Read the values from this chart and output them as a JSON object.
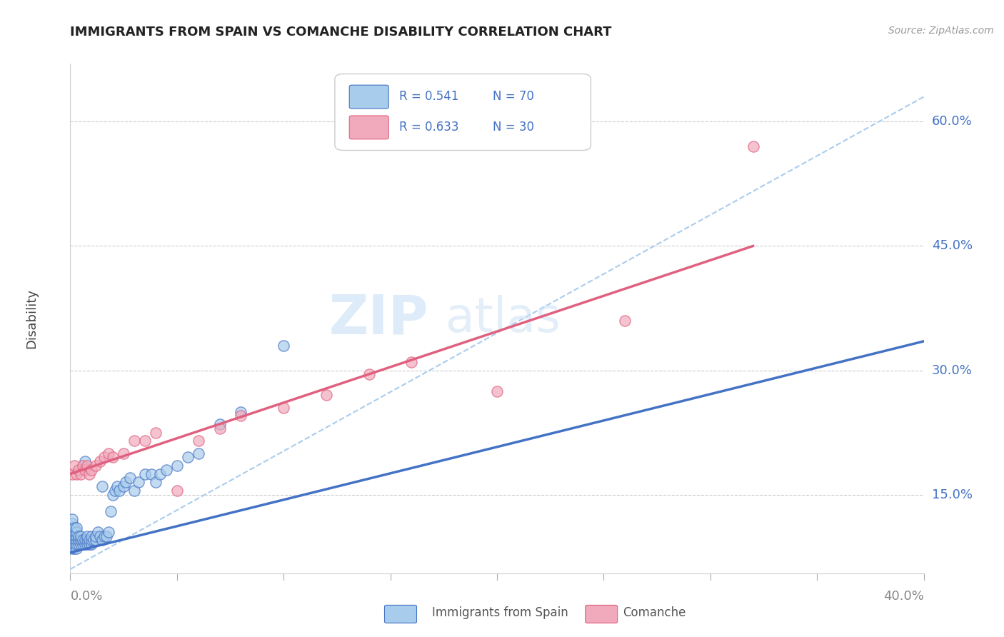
{
  "title": "IMMIGRANTS FROM SPAIN VS COMANCHE DISABILITY CORRELATION CHART",
  "source_text": "Source: ZipAtlas.com",
  "ylabel": "Disability",
  "ytick_labels": [
    "15.0%",
    "30.0%",
    "45.0%",
    "60.0%"
  ],
  "ytick_values": [
    0.15,
    0.3,
    0.45,
    0.6
  ],
  "xtick_labels": [
    "0.0%",
    "40.0%"
  ],
  "xlim": [
    0.0,
    0.4
  ],
  "ylim": [
    0.055,
    0.67
  ],
  "legend_r1": "R = 0.541",
  "legend_n1": "N = 70",
  "legend_r2": "R = 0.633",
  "legend_n2": "N = 30",
  "color_blue_fill": "#A8CCEC",
  "color_pink_fill": "#F0AABB",
  "color_blue_line": "#4472C4",
  "color_pink_line": "#E06080",
  "color_dashed": "#AACCEE",
  "watermark_zip": "ZIP",
  "watermark_atlas": "atlas",
  "blue_scatter_x": [
    0.001,
    0.001,
    0.001,
    0.001,
    0.001,
    0.001,
    0.001,
    0.001,
    0.002,
    0.002,
    0.002,
    0.002,
    0.002,
    0.002,
    0.003,
    0.003,
    0.003,
    0.003,
    0.003,
    0.003,
    0.004,
    0.004,
    0.004,
    0.005,
    0.005,
    0.005,
    0.006,
    0.006,
    0.007,
    0.007,
    0.007,
    0.008,
    0.008,
    0.008,
    0.009,
    0.009,
    0.01,
    0.01,
    0.01,
    0.011,
    0.012,
    0.012,
    0.013,
    0.014,
    0.015,
    0.015,
    0.016,
    0.017,
    0.018,
    0.019,
    0.02,
    0.021,
    0.022,
    0.023,
    0.025,
    0.026,
    0.028,
    0.03,
    0.032,
    0.035,
    0.038,
    0.04,
    0.042,
    0.045,
    0.05,
    0.055,
    0.06,
    0.07,
    0.08,
    0.1
  ],
  "blue_scatter_y": [
    0.085,
    0.09,
    0.095,
    0.1,
    0.105,
    0.11,
    0.115,
    0.12,
    0.085,
    0.09,
    0.095,
    0.1,
    0.105,
    0.11,
    0.085,
    0.09,
    0.095,
    0.1,
    0.105,
    0.11,
    0.09,
    0.095,
    0.1,
    0.09,
    0.095,
    0.1,
    0.09,
    0.095,
    0.09,
    0.095,
    0.19,
    0.09,
    0.095,
    0.1,
    0.09,
    0.095,
    0.09,
    0.095,
    0.1,
    0.095,
    0.095,
    0.1,
    0.105,
    0.1,
    0.095,
    0.16,
    0.1,
    0.1,
    0.105,
    0.13,
    0.15,
    0.155,
    0.16,
    0.155,
    0.16,
    0.165,
    0.17,
    0.155,
    0.165,
    0.175,
    0.175,
    0.165,
    0.175,
    0.18,
    0.185,
    0.195,
    0.2,
    0.235,
    0.25,
    0.33
  ],
  "pink_scatter_x": [
    0.001,
    0.002,
    0.003,
    0.004,
    0.005,
    0.006,
    0.007,
    0.008,
    0.009,
    0.01,
    0.012,
    0.014,
    0.016,
    0.018,
    0.02,
    0.025,
    0.03,
    0.035,
    0.04,
    0.05,
    0.06,
    0.07,
    0.08,
    0.1,
    0.12,
    0.14,
    0.16,
    0.2,
    0.26,
    0.32
  ],
  "pink_scatter_y": [
    0.175,
    0.185,
    0.175,
    0.18,
    0.175,
    0.185,
    0.18,
    0.185,
    0.175,
    0.18,
    0.185,
    0.19,
    0.195,
    0.2,
    0.195,
    0.2,
    0.215,
    0.215,
    0.225,
    0.155,
    0.215,
    0.23,
    0.245,
    0.255,
    0.27,
    0.295,
    0.31,
    0.275,
    0.36,
    0.57
  ],
  "blue_line_x": [
    0.0,
    0.4
  ],
  "blue_line_y": [
    0.08,
    0.335
  ],
  "pink_line_x": [
    0.0,
    0.32
  ],
  "pink_line_y": [
    0.175,
    0.45
  ],
  "dashed_line_x": [
    0.0,
    0.4
  ],
  "dashed_line_y": [
    0.06,
    0.63
  ]
}
